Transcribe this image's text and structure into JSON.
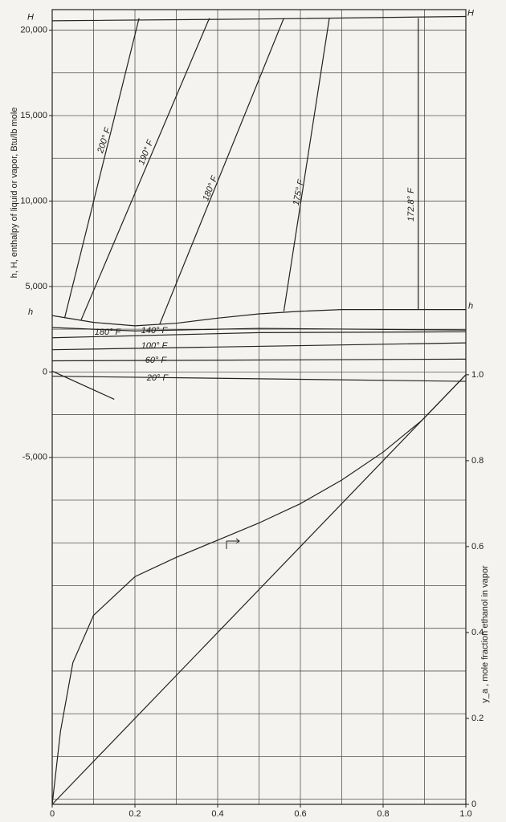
{
  "chart_data": {
    "type": "line",
    "ylabel": "h, H, enthalpy of liquid or vapor, Btu/lb mole",
    "y2label": "y_a , mole fraction ethanol in vapor",
    "xlim": [
      0,
      1
    ],
    "ylim": [
      -25300,
      21200
    ],
    "y2lim": [
      0,
      1.85
    ],
    "xticks": [
      0,
      0.2,
      0.4,
      0.6,
      0.8,
      {
        "value": 1,
        "label": "1.0"
      }
    ],
    "yticks": [
      {
        "value": 20000,
        "label": "20,000"
      },
      {
        "value": 15000,
        "label": "15,000"
      },
      {
        "value": 10000,
        "label": "10,000"
      },
      {
        "value": 5000,
        "label": "5,000"
      },
      0,
      {
        "value": -5000,
        "label": "-5,000"
      }
    ],
    "y2ticks": [
      0,
      0.2,
      0.4,
      0.6,
      0.8,
      {
        "value": 1,
        "label": "1.0"
      }
    ],
    "xgrid": [
      0,
      0.1,
      0.2,
      0.3,
      0.4,
      0.5,
      0.6,
      0.7,
      0.8,
      0.9,
      1
    ],
    "ygrid": [
      -25000,
      -22500,
      -20000,
      -17500,
      -15000,
      -12500,
      -10000,
      -7500,
      -5000,
      -2500,
      0,
      2500,
      5000,
      7500,
      10000,
      12500,
      15000,
      17500,
      20000
    ],
    "grid": true,
    "series": [
      {
        "name": "H",
        "color": "#222222",
        "x": [
          0,
          0.5,
          1
        ],
        "values": [
          20550,
          20650,
          20800
        ]
      },
      {
        "name": "h",
        "color": "#222222",
        "x": [
          0,
          0.1,
          0.2,
          0.3,
          0.4,
          0.5,
          0.6,
          0.7,
          0.8,
          0.9,
          1
        ],
        "values": [
          3300,
          2900,
          2700,
          2850,
          3150,
          3400,
          3550,
          3650,
          3650,
          3650,
          3650
        ]
      },
      {
        "name": "180° F",
        "color": "#222222",
        "x": [
          0,
          0.2,
          0.5,
          1
        ],
        "values": [
          2600,
          2400,
          2550,
          2450
        ]
      },
      {
        "name": "140° F",
        "color": "#222222",
        "x": [
          0,
          0.5,
          1
        ],
        "values": [
          2000,
          2300,
          2350
        ]
      },
      {
        "name": "100° F",
        "color": "#222222",
        "x": [
          0,
          1
        ],
        "values": [
          1300,
          1700
        ]
      },
      {
        "name": "60° F",
        "color": "#222222",
        "x": [
          0,
          1
        ],
        "values": [
          650,
          750
        ]
      },
      {
        "name": "20° F",
        "color": "#222222",
        "x": [
          0,
          1
        ],
        "values": [
          -250,
          -550
        ]
      },
      {
        "color": "#222222",
        "x": [
          0,
          0.15
        ],
        "values": [
          50,
          -1600
        ]
      },
      {
        "name": "200° F",
        "color": "#222222",
        "x": [
          0.03,
          0.21
        ],
        "values": [
          3150,
          20700
        ]
      },
      {
        "name": "190° F",
        "color": "#222222",
        "x": [
          0.07,
          0.38
        ],
        "values": [
          3050,
          20700
        ]
      },
      {
        "name": "180° F",
        "color": "#222222",
        "x": [
          0.26,
          0.56
        ],
        "values": [
          2800,
          20700
        ]
      },
      {
        "name": "175° F",
        "color": "#222222",
        "x": [
          0.56,
          0.67
        ],
        "values": [
          3550,
          20700
        ]
      },
      {
        "name": "172.8° F",
        "color": "#222222",
        "x": [
          0.885,
          0.885
        ],
        "values": [
          3650,
          20700
        ]
      },
      {
        "color": "#222222",
        "axis": "y2",
        "x": [
          0,
          0.02,
          0.05,
          0.1,
          0.2,
          0.3,
          0.4,
          0.5,
          0.6,
          0.7,
          0.8,
          0.894,
          1
        ],
        "values": [
          0,
          0.17,
          0.33,
          0.44,
          0.53,
          0.575,
          0.615,
          0.655,
          0.7,
          0.755,
          0.82,
          0.894,
          1
        ]
      },
      {
        "color": "#222222",
        "axis": "y2",
        "x": [
          0,
          1
        ],
        "values": [
          0,
          1
        ]
      }
    ]
  }
}
